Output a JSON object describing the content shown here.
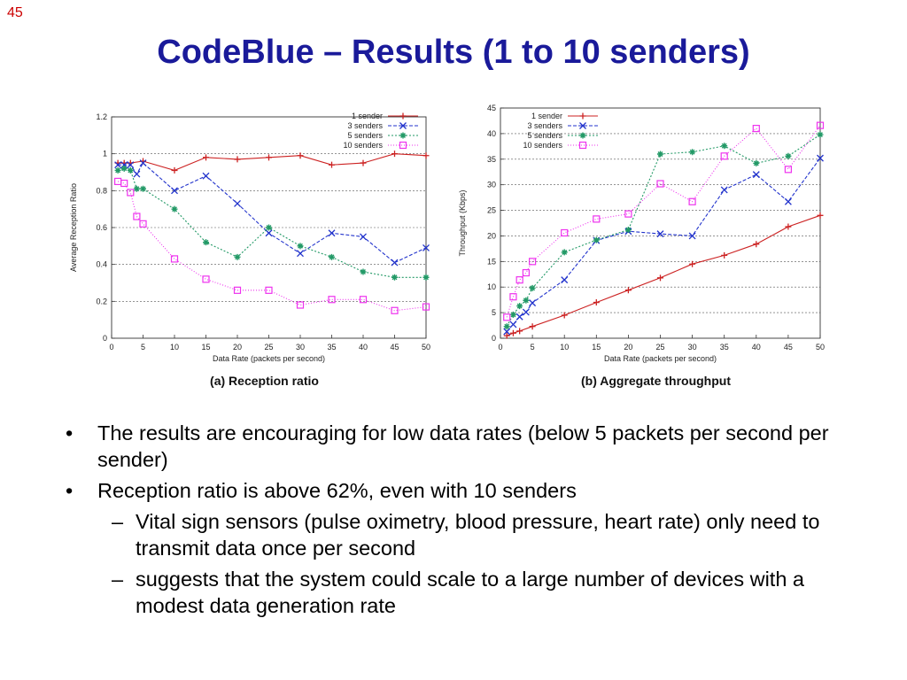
{
  "slide": {
    "number": "45",
    "title": "CodeBlue – Results (1 to 10 senders)"
  },
  "bullets": [
    {
      "text": "The results are encouraging for low data rates (below 5 packets per second per sender)",
      "subs": []
    },
    {
      "text": "Reception ratio is above 62%, even with 10 senders",
      "subs": [
        "Vital sign sensors (pulse oximetry, blood pressure, heart rate) only need to transmit data once per second",
        "suggests that the system could scale to a large number of devices with a modest data generation rate"
      ]
    }
  ],
  "chart_data": [
    {
      "type": "line",
      "caption": "(a) Reception ratio",
      "xlabel": "Data Rate (packets per second)",
      "ylabel": "Average Reception Ratio",
      "xlim": [
        0,
        50
      ],
      "ylim": [
        0,
        1.2
      ],
      "xticks": [
        "0",
        "5",
        "10",
        "15",
        "20",
        "25",
        "30",
        "35",
        "40",
        "45",
        "50"
      ],
      "yticks": [
        "0",
        "0.2",
        "0.4",
        "0.6",
        "0.8",
        "1",
        "1.2"
      ],
      "grid": "horizontal dashed",
      "legend_position": "top-right",
      "series": [
        {
          "name": "1 sender",
          "color": "#cc2222",
          "marker": "plus",
          "dash": "",
          "x": [
            1,
            2,
            3,
            5,
            10,
            15,
            20,
            25,
            30,
            35,
            40,
            45,
            50
          ],
          "y": [
            0.95,
            0.95,
            0.95,
            0.96,
            0.91,
            0.98,
            0.97,
            0.98,
            0.99,
            0.94,
            0.95,
            1.0,
            0.99
          ]
        },
        {
          "name": "3 senders",
          "color": "#2233cc",
          "marker": "x",
          "dash": "4,2",
          "x": [
            1,
            2,
            3,
            4,
            5,
            10,
            15,
            20,
            25,
            30,
            35,
            40,
            45,
            50
          ],
          "y": [
            0.94,
            0.94,
            0.94,
            0.89,
            0.95,
            0.8,
            0.88,
            0.73,
            0.57,
            0.46,
            0.57,
            0.55,
            0.41,
            0.49
          ]
        },
        {
          "name": "5 senders",
          "color": "#229966",
          "marker": "star",
          "dash": "2,2",
          "x": [
            1,
            2,
            3,
            4,
            5,
            10,
            15,
            20,
            25,
            30,
            35,
            40,
            45,
            50
          ],
          "y": [
            0.91,
            0.92,
            0.91,
            0.81,
            0.81,
            0.7,
            0.52,
            0.44,
            0.6,
            0.5,
            0.44,
            0.36,
            0.33,
            0.33
          ]
        },
        {
          "name": "10 senders",
          "color": "#ee33ee",
          "marker": "square",
          "dash": "1,2",
          "x": [
            1,
            2,
            3,
            4,
            5,
            10,
            15,
            20,
            25,
            30,
            35,
            40,
            45,
            50
          ],
          "y": [
            0.85,
            0.84,
            0.79,
            0.66,
            0.62,
            0.43,
            0.32,
            0.26,
            0.26,
            0.18,
            0.21,
            0.21,
            0.15,
            0.17
          ]
        }
      ]
    },
    {
      "type": "line",
      "caption": "(b) Aggregate throughput",
      "xlabel": "Data Rate (packets per second)",
      "ylabel": "Throughput (Kbps)",
      "xlim": [
        0,
        50
      ],
      "ylim": [
        0,
        45
      ],
      "xticks": [
        "0",
        "5",
        "10",
        "15",
        "20",
        "25",
        "30",
        "35",
        "40",
        "45",
        "50"
      ],
      "yticks": [
        "0",
        "5",
        "10",
        "15",
        "20",
        "25",
        "30",
        "35",
        "40",
        "45"
      ],
      "grid": "horizontal dashed",
      "legend_position": "top-left",
      "series": [
        {
          "name": "1 sender",
          "color": "#cc2222",
          "marker": "plus",
          "dash": "",
          "x": [
            1,
            2,
            3,
            5,
            10,
            15,
            20,
            25,
            30,
            35,
            40,
            45,
            50
          ],
          "y": [
            0.5,
            1.0,
            1.4,
            2.3,
            4.5,
            7.0,
            9.4,
            11.8,
            14.5,
            16.2,
            18.4,
            21.8,
            24.0
          ]
        },
        {
          "name": "3 senders",
          "color": "#2233cc",
          "marker": "x",
          "dash": "4,2",
          "x": [
            1,
            2,
            3,
            4,
            5,
            10,
            15,
            20,
            25,
            30,
            35,
            40,
            45,
            50
          ],
          "y": [
            1.3,
            2.7,
            4.2,
            5.1,
            6.9,
            11.4,
            19.1,
            20.9,
            20.4,
            20.0,
            29.0,
            32.0,
            26.7,
            35.2
          ]
        },
        {
          "name": "5 senders",
          "color": "#229966",
          "marker": "star",
          "dash": "2,2",
          "x": [
            1,
            2,
            3,
            4,
            5,
            10,
            15,
            20,
            25,
            30,
            35,
            40,
            45,
            50
          ],
          "y": [
            2.3,
            4.6,
            6.3,
            7.4,
            9.8,
            16.8,
            19.2,
            21.2,
            36.0,
            36.4,
            37.6,
            34.2,
            35.6,
            39.8
          ]
        },
        {
          "name": "10 senders",
          "color": "#ee33ee",
          "marker": "square",
          "dash": "1,2",
          "x": [
            1,
            2,
            3,
            4,
            5,
            10,
            15,
            20,
            25,
            30,
            35,
            40,
            45,
            50
          ],
          "y": [
            4.1,
            8.1,
            11.4,
            12.8,
            15.0,
            20.6,
            23.3,
            24.3,
            30.2,
            26.7,
            35.6,
            41.0,
            33.0,
            41.6
          ]
        }
      ]
    }
  ]
}
